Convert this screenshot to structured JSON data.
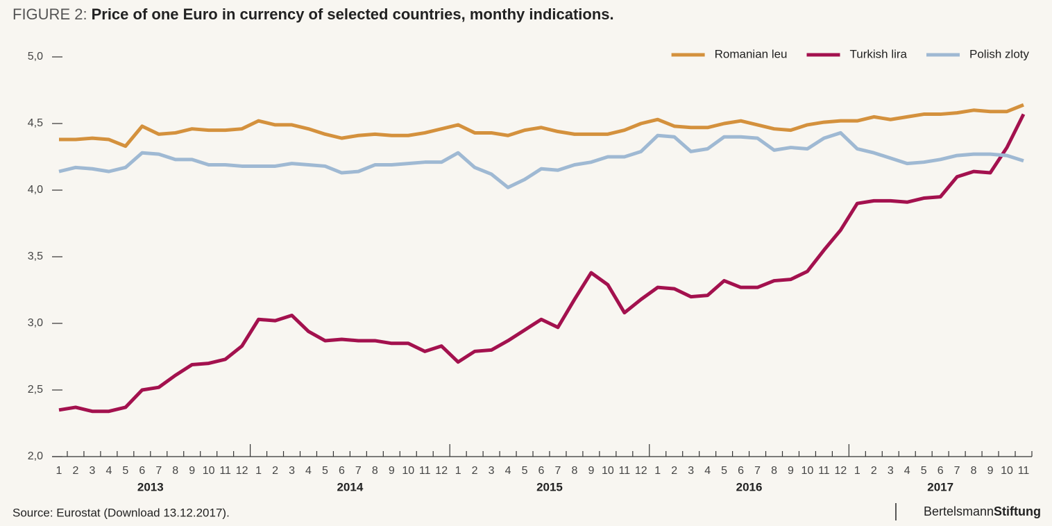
{
  "chart_data": {
    "type": "line",
    "figure_label": "FIGURE 2:",
    "title": "Price of one Euro in currency of selected countries, monthy indications.",
    "source": "Source: Eurostat (Download 13.12.2017).",
    "brand": [
      "Bertelsmann",
      "Stiftung"
    ],
    "categories": [
      "1",
      "2",
      "3",
      "4",
      "5",
      "6",
      "7",
      "8",
      "9",
      "10",
      "11",
      "12",
      "1",
      "2",
      "3",
      "4",
      "5",
      "6",
      "7",
      "8",
      "9",
      "10",
      "11",
      "12",
      "1",
      "2",
      "3",
      "4",
      "5",
      "6",
      "7",
      "8",
      "9",
      "10",
      "11",
      "12",
      "1",
      "2",
      "3",
      "4",
      "5",
      "6",
      "7",
      "8",
      "9",
      "10",
      "11",
      "12",
      "1",
      "2",
      "3",
      "4",
      "5",
      "6",
      "7",
      "8",
      "9",
      "10",
      "11"
    ],
    "year_labels": [
      "2013",
      "2014",
      "2015",
      "2016",
      "2017"
    ],
    "ylim": [
      2,
      5
    ],
    "yticks": [
      {
        "value": 2,
        "label": "2,0"
      },
      {
        "value": 2.5,
        "label": "2,5"
      },
      {
        "value": 3,
        "label": "3,0"
      },
      {
        "value": 3.5,
        "label": "3,5"
      },
      {
        "value": 4,
        "label": "4,0"
      },
      {
        "value": 4.5,
        "label": "4,5"
      },
      {
        "value": 5,
        "label": "5,0"
      }
    ],
    "legend": "top-right",
    "series": [
      {
        "name": "Romanian leu",
        "color": "#d4913d",
        "values": [
          4.38,
          4.38,
          4.39,
          4.38,
          4.33,
          4.48,
          4.42,
          4.43,
          4.46,
          4.45,
          4.45,
          4.46,
          4.52,
          4.49,
          4.49,
          4.46,
          4.42,
          4.39,
          4.41,
          4.42,
          4.41,
          4.41,
          4.43,
          4.46,
          4.49,
          4.43,
          4.43,
          4.41,
          4.45,
          4.47,
          4.44,
          4.42,
          4.42,
          4.42,
          4.45,
          4.5,
          4.53,
          4.48,
          4.47,
          4.47,
          4.5,
          4.52,
          4.49,
          4.46,
          4.45,
          4.49,
          4.51,
          4.52,
          4.52,
          4.55,
          4.53,
          4.55,
          4.57,
          4.57,
          4.58,
          4.6,
          4.59,
          4.59,
          4.64
        ]
      },
      {
        "name": "Turkish lira",
        "color": "#a3114e",
        "values": [
          2.35,
          2.37,
          2.34,
          2.34,
          2.37,
          2.5,
          2.52,
          2.61,
          2.69,
          2.7,
          2.73,
          2.83,
          3.03,
          3.02,
          3.06,
          2.94,
          2.87,
          2.88,
          2.87,
          2.87,
          2.85,
          2.85,
          2.79,
          2.83,
          2.71,
          2.79,
          2.8,
          2.87,
          2.95,
          3.03,
          2.97,
          3.18,
          3.38,
          3.29,
          3.08,
          3.18,
          3.27,
          3.26,
          3.2,
          3.21,
          3.32,
          3.27,
          3.27,
          3.32,
          3.33,
          3.39,
          3.55,
          3.7,
          3.9,
          3.92,
          3.92,
          3.91,
          3.94,
          3.95,
          4.1,
          4.14,
          4.13,
          4.32,
          4.57
        ]
      },
      {
        "name": "Polish zloty",
        "color": "#9fb9d3",
        "values": [
          4.14,
          4.17,
          4.16,
          4.14,
          4.17,
          4.28,
          4.27,
          4.23,
          4.23,
          4.19,
          4.19,
          4.18,
          4.18,
          4.18,
          4.2,
          4.19,
          4.18,
          4.13,
          4.14,
          4.19,
          4.19,
          4.2,
          4.21,
          4.21,
          4.28,
          4.17,
          4.12,
          4.02,
          4.08,
          4.16,
          4.15,
          4.19,
          4.21,
          4.25,
          4.25,
          4.29,
          4.41,
          4.4,
          4.29,
          4.31,
          4.4,
          4.4,
          4.39,
          4.3,
          4.32,
          4.31,
          4.39,
          4.43,
          4.31,
          4.28,
          4.24,
          4.2,
          4.21,
          4.23,
          4.26,
          4.27,
          4.27,
          4.26,
          4.22
        ]
      }
    ]
  }
}
